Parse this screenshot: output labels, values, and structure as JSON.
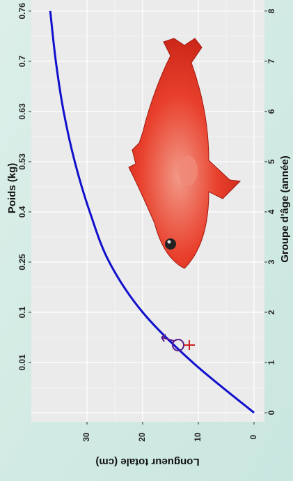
{
  "chart_data": {
    "type": "line",
    "x_label": "Groupe d'âge (année)",
    "y_label": "Longueur totale (cm)",
    "x2_label": "Poids (kg)",
    "x": [
      0,
      1,
      2,
      3,
      4,
      5,
      6,
      7,
      8
    ],
    "series": [
      {
        "color": "#1010cc",
        "values": [
          0,
          11,
          20,
          26,
          29.5,
          32.2,
          34.2,
          35.6,
          36.6
        ]
      }
    ],
    "xlim": [
      -0.18,
      8.22
    ],
    "xticks": [
      0,
      1,
      2,
      3,
      4,
      5,
      6,
      7,
      8
    ],
    "x2ticks": [
      {
        "value": 1,
        "label": "0.01"
      },
      {
        "value": 2,
        "label": "0.1"
      },
      {
        "value": 3,
        "label": "0.25"
      },
      {
        "value": 4,
        "label": "0.4"
      },
      {
        "value": 5,
        "label": "0.53"
      },
      {
        "value": 6,
        "label": "0.63"
      },
      {
        "value": 7,
        "label": "0.7"
      },
      {
        "value": 8,
        "label": "0.76"
      }
    ],
    "ylim": [
      -1.875,
      40
    ],
    "yticks": [
      0,
      10,
      20,
      30
    ],
    "grid": true
  }
}
